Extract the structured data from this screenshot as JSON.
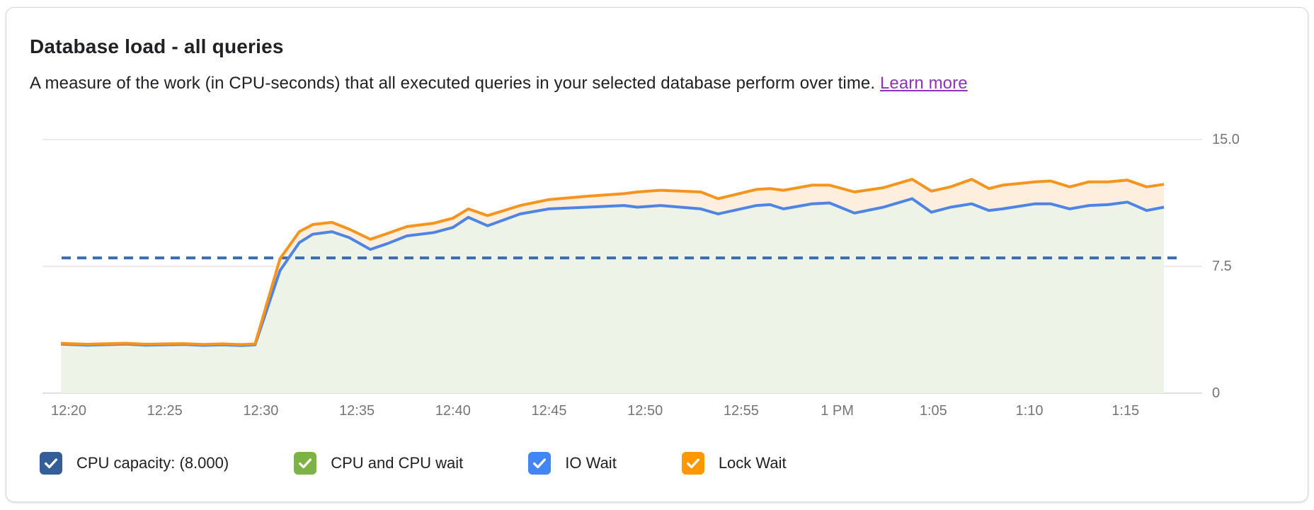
{
  "header": {
    "title": "Database load - all queries",
    "description": "A measure of the work (in CPU-seconds) that all executed queries in your selected database perform over time.",
    "learn_more_label": "Learn more",
    "learn_more_color": "#8e34b8"
  },
  "legend": [
    {
      "label": "CPU capacity: (8.000)",
      "color": "#335f96",
      "checked": true
    },
    {
      "label": "CPU and CPU wait",
      "color": "#7cb342",
      "checked": true
    },
    {
      "label": "IO Wait",
      "color": "#4285f4",
      "checked": true
    },
    {
      "label": "Lock Wait",
      "color": "#ff9800",
      "checked": true
    }
  ],
  "chart_data": {
    "type": "area",
    "title": "Database load - all queries",
    "stacked": true,
    "grid": "horizontal",
    "legend_position": "bottom",
    "y_axis": {
      "ylim": [
        0,
        15
      ],
      "ticks": [
        0,
        7.5,
        15.0
      ],
      "tick_labels": [
        "0",
        "7.5",
        "15.0"
      ],
      "side": "right",
      "color": "#757575"
    },
    "x_axis": {
      "tick_labels": [
        "12:20",
        "12:25",
        "12:30",
        "12:35",
        "12:40",
        "12:45",
        "12:50",
        "12:55",
        "1 PM",
        "1:05",
        "1:10",
        "1:15"
      ],
      "tick_minutes": [
        0,
        5,
        10,
        15,
        20,
        25,
        30,
        35,
        40,
        45,
        50,
        55
      ],
      "color": "#757575"
    },
    "capacity_line": {
      "name": "CPU capacity",
      "value": 8.0,
      "style": "dashed",
      "color": "#3b6cae"
    },
    "points_minutes": [
      -0.4,
      0,
      1,
      2,
      3,
      4,
      5,
      6,
      7,
      8,
      9,
      9.7,
      11,
      12,
      12.7,
      13.7,
      14.6,
      15.7,
      16.6,
      17.6,
      19,
      20,
      20.8,
      21.8,
      23.5,
      25,
      27,
      28.9,
      29.6,
      30.8,
      32.9,
      33.8,
      35.8,
      36.5,
      37.2,
      38.7,
      39.6,
      40.9,
      42.4,
      43.9,
      44.9,
      45.9,
      47,
      47.9,
      48.6,
      50.3,
      51.1,
      52.1,
      53.1,
      54.1,
      55.1,
      56.1,
      57
    ],
    "series": [
      {
        "name": "IO Wait",
        "color": "#4e84e4",
        "area_fill": "#eef3e7",
        "values": [
          2.9,
          2.88,
          2.84,
          2.87,
          2.9,
          2.84,
          2.86,
          2.88,
          2.83,
          2.86,
          2.82,
          2.86,
          7.25,
          8.9,
          9.4,
          9.55,
          9.2,
          8.5,
          8.85,
          9.3,
          9.5,
          9.8,
          10.4,
          9.9,
          10.6,
          10.9,
          11.0,
          11.1,
          11.0,
          11.1,
          10.9,
          10.6,
          11.1,
          11.15,
          10.9,
          11.2,
          11.25,
          10.65,
          11.0,
          11.5,
          10.7,
          11.0,
          11.2,
          10.8,
          10.9,
          11.2,
          11.2,
          10.9,
          11.1,
          11.15,
          11.3,
          10.8,
          11.0
        ]
      },
      {
        "name": "Lock Wait",
        "color": "#f7941e",
        "area_fill": "#fdeedd",
        "values": [
          2.95,
          2.93,
          2.89,
          2.92,
          2.95,
          2.89,
          2.91,
          2.93,
          2.88,
          2.91,
          2.87,
          2.91,
          7.95,
          9.55,
          9.97,
          10.1,
          9.7,
          9.1,
          9.45,
          9.85,
          10.05,
          10.35,
          10.9,
          10.5,
          11.1,
          11.45,
          11.65,
          11.8,
          11.9,
          12.0,
          11.9,
          11.5,
          12.05,
          12.1,
          12.0,
          12.3,
          12.3,
          11.9,
          12.15,
          12.65,
          11.95,
          12.2,
          12.65,
          12.1,
          12.3,
          12.5,
          12.55,
          12.2,
          12.5,
          12.5,
          12.6,
          12.2,
          12.35
        ]
      }
    ],
    "grid_colors": {
      "line": "#ebebeb",
      "baseline": "#e0e0e0"
    }
  }
}
